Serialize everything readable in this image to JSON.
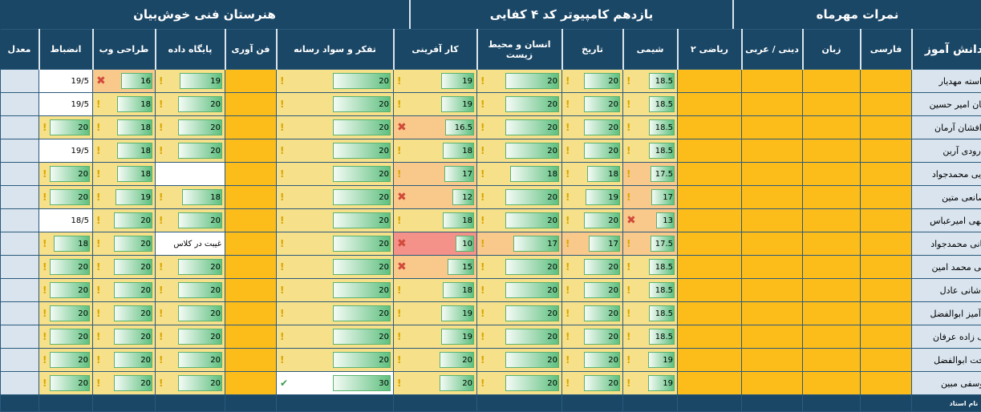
{
  "header": {
    "school": "هنرستان فنی خوش‌بیان",
    "class": "یازدهم کامپیوتر کد ۴ کفایی",
    "term": "نمرات مهرماه"
  },
  "columns": [
    "نام دانش آموز",
    "فارسی",
    "زبان",
    "دینی / عربی",
    "ریاضی ۲",
    "شیمی",
    "تاریخ",
    "انسان و محیط زیست",
    "کار آفرینی",
    "تفکر و سواد رسانه",
    "فن آوری",
    "پایگاه داده",
    "طراحی وب",
    "انضباط",
    "معدل"
  ],
  "footer": {
    "teacher_label": "نام استاد"
  },
  "legend": {
    "max": 20,
    "warn": "#f7e08a",
    "low": "#f9c98c",
    "bad": "#f4928a",
    "good": "#60c080"
  },
  "students": [
    {
      "name": "آراسته مهدیار",
      "shimi": "18.5",
      "tarikh": "20",
      "ensan": "20",
      "kar": "19",
      "tafakor": "20",
      "db": "19",
      "web": "16",
      "enzebat": "19/5"
    },
    {
      "name": "باقریان امیر حسین",
      "shimi": "18.5",
      "tarikh": "20",
      "ensan": "20",
      "kar": "19",
      "tafakor": "20",
      "db": "20",
      "web": "18",
      "enzebat": "19/5"
    },
    {
      "name": "بذرافشان آرمان",
      "shimi": "18.5",
      "tarikh": "20",
      "ensan": "20",
      "kar": "16.5",
      "tafakor": "20",
      "db": "20",
      "web": "18",
      "enzebat": "20"
    },
    {
      "name": "درودی آرین",
      "shimi": "18.5",
      "tarikh": "20",
      "ensan": "20",
      "kar": "18",
      "tafakor": "20",
      "db": "20",
      "web": "18",
      "enzebat": "19/5"
    },
    {
      "name": "رضایی محمدجواد",
      "shimi": "17.5",
      "tarikh": "18",
      "ensan": "18",
      "kar": "17",
      "tafakor": "20",
      "db": "",
      "web": "18",
      "enzebat": "20"
    },
    {
      "name": "صانعی متین",
      "shimi": "17",
      "tarikh": "19",
      "ensan": "20",
      "kar": "12",
      "tafakor": "20",
      "db": "18",
      "web": "19",
      "enzebat": "20"
    },
    {
      "name": "عبدالهی امیرعباس",
      "shimi": "13",
      "tarikh": "20",
      "ensan": "20",
      "kar": "18",
      "tafakor": "20",
      "db": "20",
      "web": "20",
      "enzebat": "18/5"
    },
    {
      "name": "عرفانی محمدجواد",
      "shimi": "17.5",
      "tarikh": "17",
      "ensan": "17",
      "kar": "10",
      "tafakor": "20",
      "db": "غیبت در کلاس",
      "web": "20",
      "enzebat": "18"
    },
    {
      "name": "قاضی محمد امین",
      "shimi": "18.5",
      "tarikh": "20",
      "ensan": "20",
      "kar": "15",
      "tafakor": "20",
      "db": "20",
      "web": "20",
      "enzebat": "20"
    },
    {
      "name": "کاشانی عادل",
      "shimi": "18.5",
      "tarikh": "20",
      "ensan": "20",
      "kar": "18",
      "tafakor": "20",
      "db": "20",
      "web": "20",
      "enzebat": "20"
    },
    {
      "name": "مهر آمیز ابوالفضل",
      "shimi": "18.5",
      "tarikh": "20",
      "ensan": "20",
      "kar": "19",
      "tafakor": "20",
      "db": "20",
      "web": "20",
      "enzebat": "20"
    },
    {
      "name": "نجف زاده عرفان",
      "shimi": "18.5",
      "tarikh": "20",
      "ensan": "20",
      "kar": "19",
      "tafakor": "20",
      "db": "20",
      "web": "20",
      "enzebat": "20"
    },
    {
      "name": "نوبخت ابوالفضل",
      "shimi": "19",
      "tarikh": "20",
      "ensan": "20",
      "kar": "20",
      "tafakor": "20",
      "db": "20",
      "web": "20",
      "enzebat": "20"
    },
    {
      "name": "یوسفی مبین",
      "shimi": "19",
      "tarikh": "20",
      "ensan": "20",
      "kar": "20",
      "tafakor": "30",
      "db": "20",
      "web": "20",
      "enzebat": "20"
    }
  ]
}
